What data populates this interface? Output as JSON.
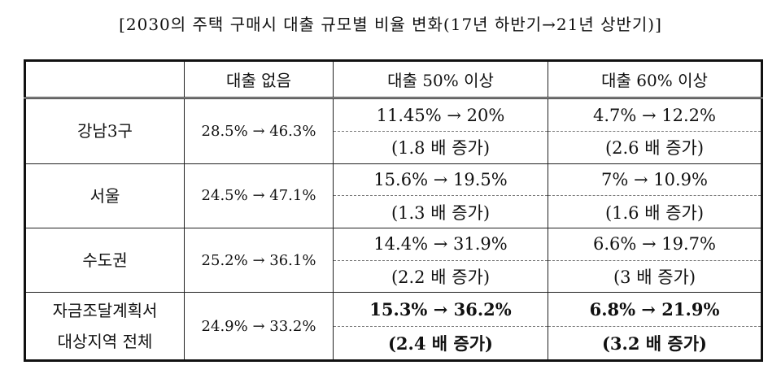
{
  "title": "[2030의 주택 구매시 대출 규모별 비율 변화(17년 하반기→21년 상반기)]",
  "columns": [
    "",
    "대출 없음",
    "대출 50% 이상",
    "대출 60% 이상"
  ],
  "rows": [
    {
      "region": "강남3구",
      "no_loan": "28.5% → 46.3%",
      "loan50": "11.45% → 20%",
      "loan50_ratio": "(1.8 배 증가)",
      "loan60": "4.7% → 12.2%",
      "loan60_ratio": "(2.6 배 증가)"
    },
    {
      "region": "서울",
      "no_loan": "24.5% → 47.1%",
      "loan50": "15.6% → 19.5%",
      "loan50_ratio": "(1.3 배 증가)",
      "loan60": "7% → 10.9%",
      "loan60_ratio": "(1.6 배 증가)"
    },
    {
      "region": "수도권",
      "no_loan": "25.2% → 36.1%",
      "loan50": "14.4% → 31.9%",
      "loan50_ratio": "(2.2 배 증가)",
      "loan60": "6.6% → 19.7%",
      "loan60_ratio": "(3 배 증가)"
    },
    {
      "region_line1": "자금조달계획서",
      "region_line2": "대상지역 전체",
      "no_loan": "24.9% → 33.2%",
      "loan50": "15.3% → 36.2%",
      "loan50_ratio": "(2.4 배 증가)",
      "loan60": "6.8% → 21.9%",
      "loan60_ratio": "(3.2 배 증가)"
    }
  ]
}
